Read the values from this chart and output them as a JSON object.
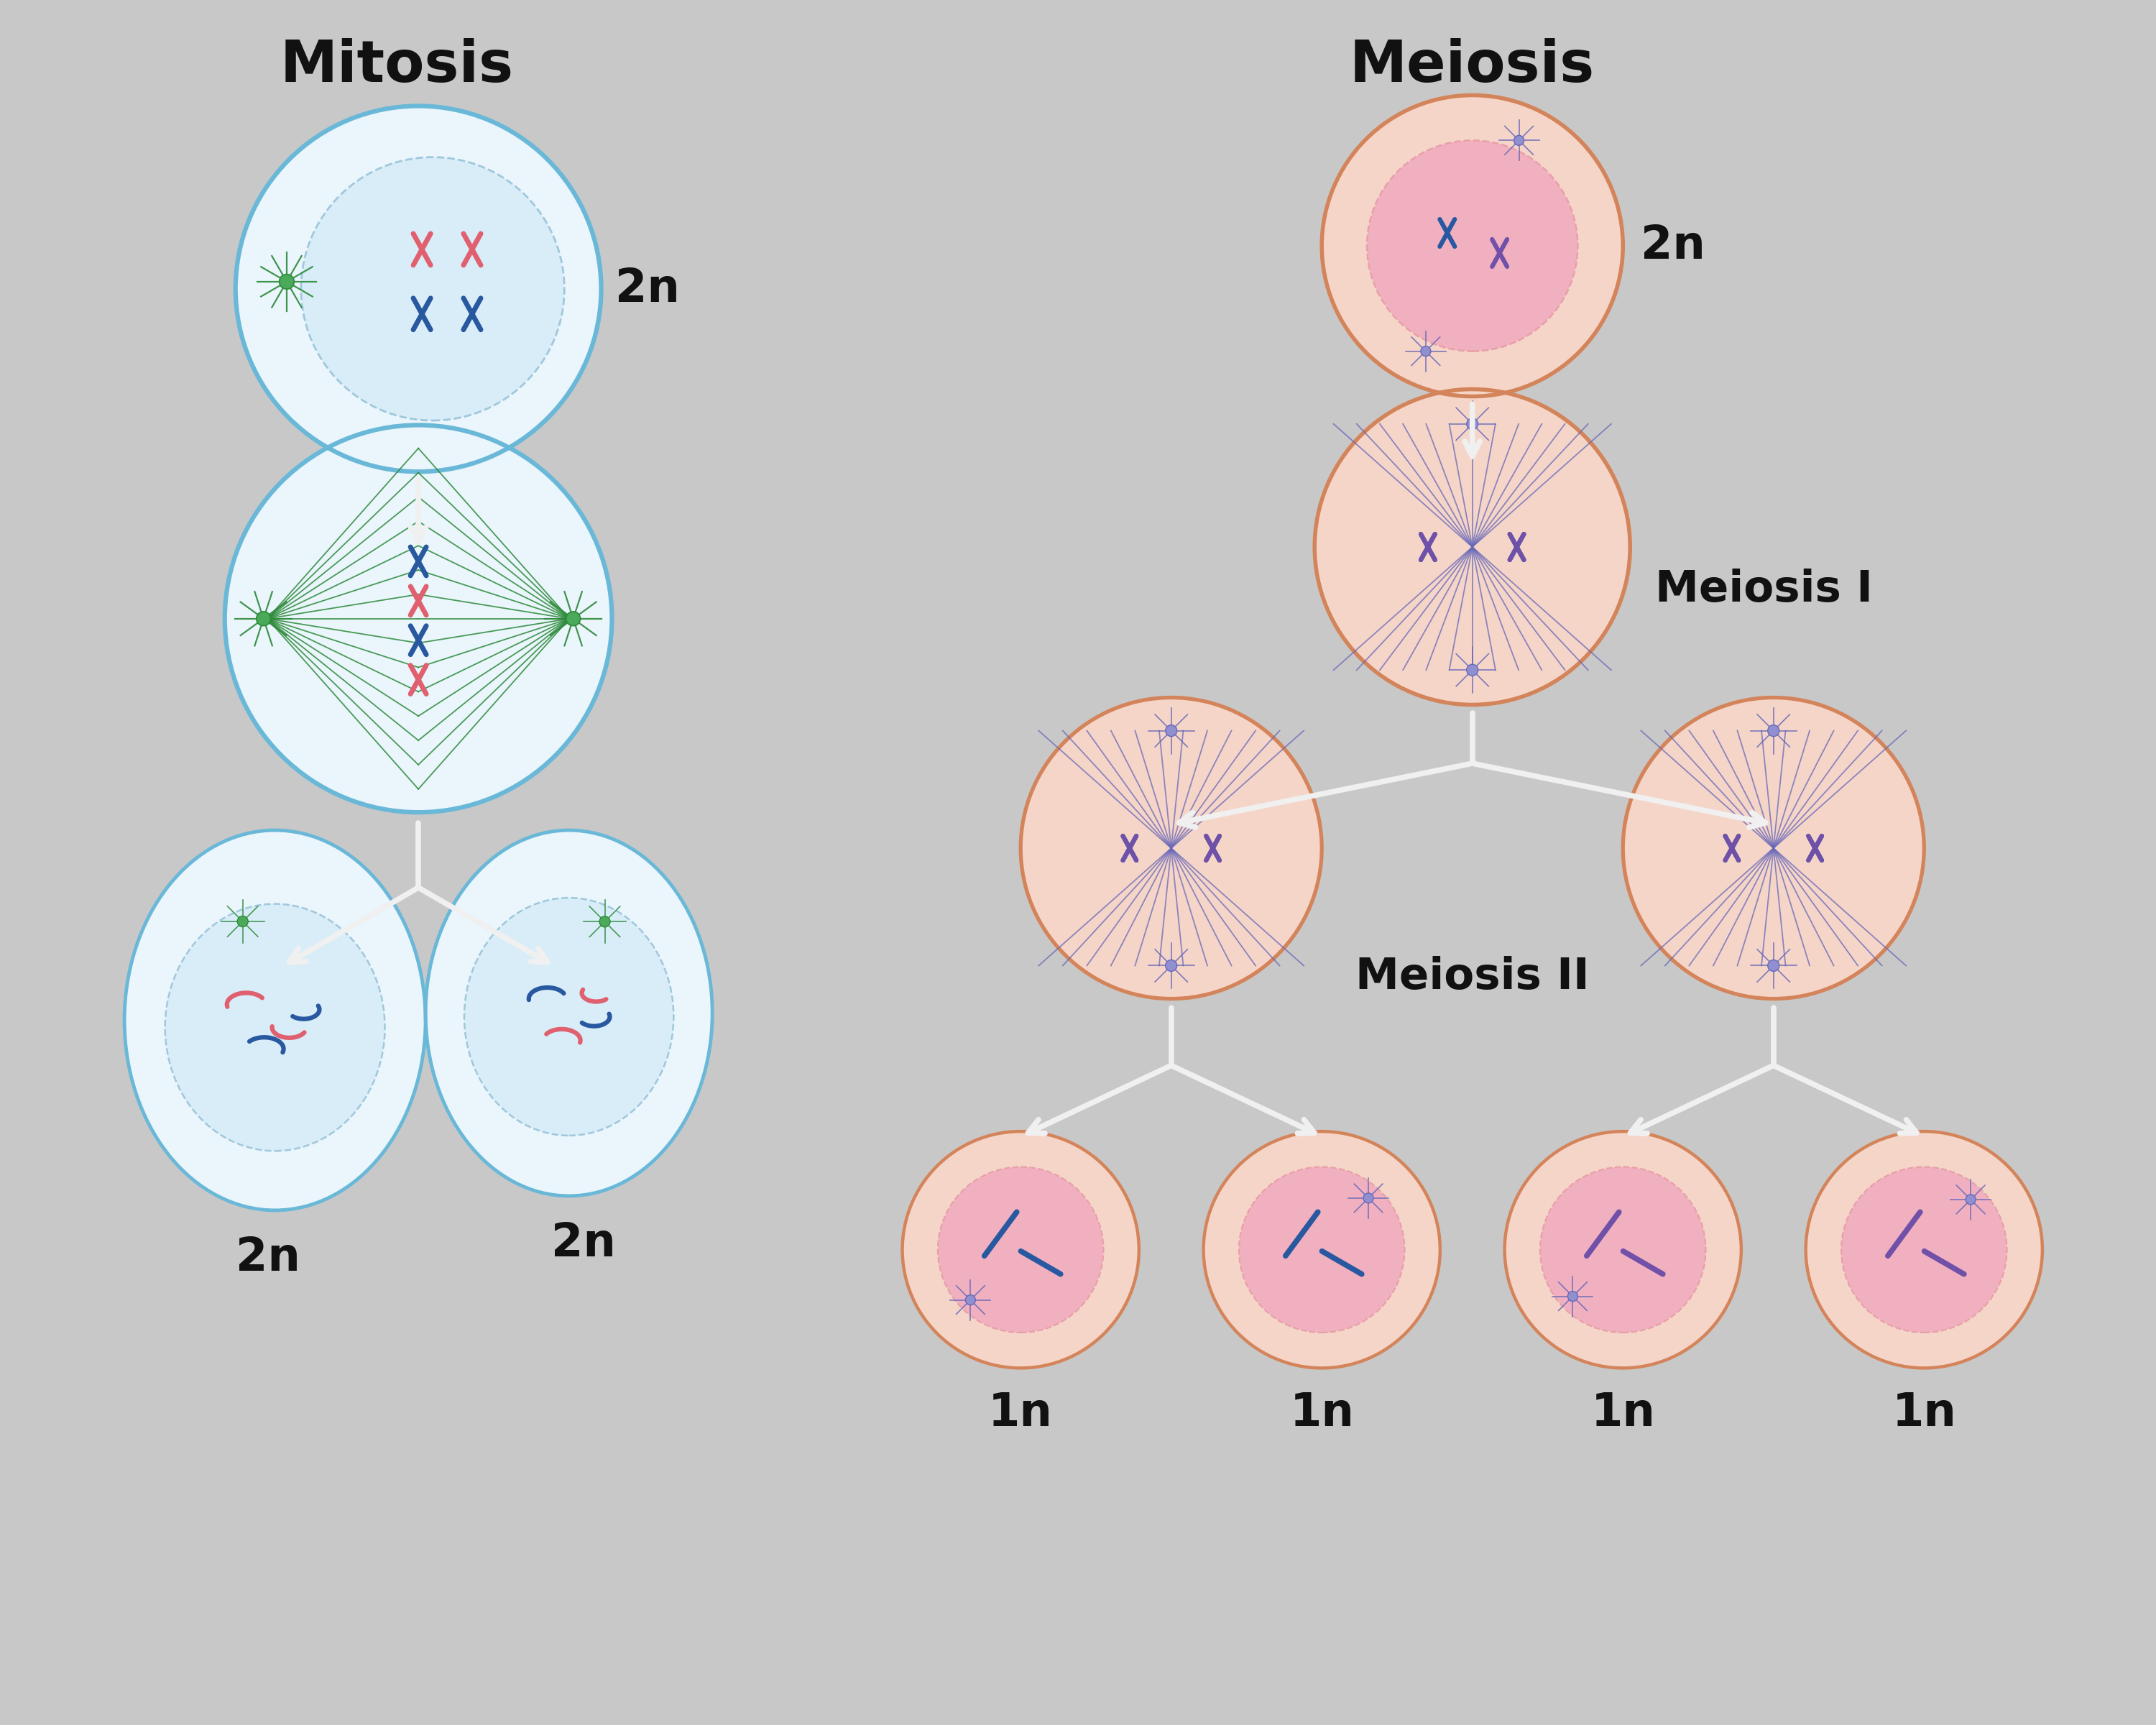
{
  "bg_color": "#c8c8c8",
  "title_mitosis": "Mitosis",
  "title_meiosis": "Meiosis",
  "label_meiosis1": "Meiosis I",
  "label_meiosis2": "Meiosis II",
  "title_fontsize": 58,
  "label_fontsize": 44,
  "ploidy_fontsize": 46,
  "mit_cell_outer": "#6ab8d8",
  "mit_cell_fill": "#eaf5fc",
  "mit_nucleus_fill": "#d8edf8",
  "mit_nucleus_edge": "#a0c8dc",
  "mei_cell_outer": "#d4845a",
  "mei_cell_fill": "#f5d5c8",
  "mei_nucleus_fill": "#f0b0c0",
  "mei_nucleus_edge": "#e8a0a8",
  "spindle_mit": "#2d8a3a",
  "spindle_mei": "#6868b8",
  "chr_pink": "#e06070",
  "chr_blue": "#2858a0",
  "chr_purple": "#7050a8",
  "centriole_mit": "#2d7a3a",
  "centriole_mei": "#6868b8",
  "arrow_white": "#f0f0f0",
  "text_color": "#111111",
  "centriole_body_mit": "#4aaa5a"
}
